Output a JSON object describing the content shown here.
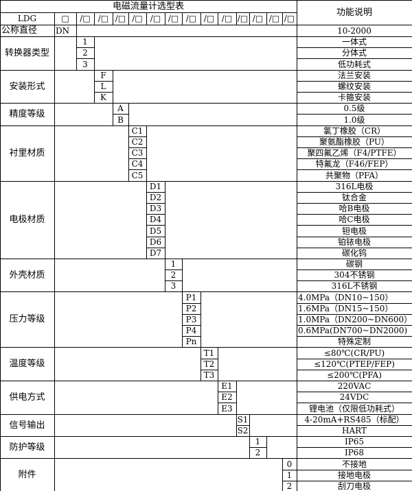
{
  "title": "电磁流量计选型表",
  "function_header": "功能说明",
  "model_row": {
    "prefix": "LDG",
    "first_box": "□",
    "boxes": [
      "/□",
      "/□",
      "/□",
      "/□",
      "/□",
      "/□",
      "/□",
      "/□",
      "/□",
      "/□",
      "/□",
      "/□",
      "/□"
    ]
  },
  "nominal": {
    "label": "公称直径",
    "code": "DN",
    "desc": "10-2000"
  },
  "sections": [
    {
      "label": "转换器类型",
      "items": [
        {
          "code": "1",
          "desc": "一体式"
        },
        {
          "code": "2",
          "desc": "分体式"
        },
        {
          "code": "3",
          "desc": "低功耗式"
        }
      ]
    },
    {
      "label": "安装形式",
      "items": [
        {
          "code": "F",
          "desc": "法兰安装"
        },
        {
          "code": "L",
          "desc": "螺纹安装"
        },
        {
          "code": "K",
          "desc": "卡箍安装"
        }
      ]
    },
    {
      "label": "精度等级",
      "items": [
        {
          "code": "A",
          "desc": "0.5级"
        },
        {
          "code": "B",
          "desc": "1.0级"
        }
      ]
    },
    {
      "label": "衬里材质",
      "items": [
        {
          "code": "C1",
          "desc": "氯丁橡胶（CR）"
        },
        {
          "code": "C2",
          "desc": "聚氨酯橡胶（PU）"
        },
        {
          "code": "C3",
          "desc": "聚四氟乙烯（F4/PTFE）"
        },
        {
          "code": "C4",
          "desc": "特氟龙（F46/FEP）"
        },
        {
          "code": "C5",
          "desc": "共聚物（PFA）"
        }
      ]
    },
    {
      "label": "电极材质",
      "items": [
        {
          "code": "D1",
          "desc": "316L电极"
        },
        {
          "code": "D2",
          "desc": "钛合金"
        },
        {
          "code": "D3",
          "desc": "哈B电极"
        },
        {
          "code": "D4",
          "desc": "哈C电极"
        },
        {
          "code": "D5",
          "desc": "钽电极"
        },
        {
          "code": "D6",
          "desc": "铂铱电极"
        },
        {
          "code": "D7",
          "desc": "碳化钨"
        }
      ]
    },
    {
      "label": "外壳材质",
      "items": [
        {
          "code": "1",
          "desc": "碳钢"
        },
        {
          "code": "2",
          "desc": "304不锈钢"
        },
        {
          "code": "3",
          "desc": "316L不锈钢"
        }
      ]
    },
    {
      "label": "压力等级",
      "items": [
        {
          "code": "P1",
          "desc": "4.0MPa（DN10~150）",
          "align": "left"
        },
        {
          "code": "P2",
          "desc": "1.6MPa（DN15~150）",
          "align": "left"
        },
        {
          "code": "P3",
          "desc": "1.0MPa（DN200~DN600）",
          "align": "left"
        },
        {
          "code": "P4",
          "desc": "0.6MPa(DN700~DN2000)",
          "align": "left"
        },
        {
          "code": "Pn",
          "desc": "特殊定制"
        }
      ]
    },
    {
      "label": "温度等级",
      "items": [
        {
          "code": "T1",
          "desc": "≤80℃(CR/PU)"
        },
        {
          "code": "T2",
          "desc": "≤120℃(PTEP/FEP)"
        },
        {
          "code": "T3",
          "desc": "≤200℃(PFA)"
        }
      ]
    },
    {
      "label": "供电方式",
      "items": [
        {
          "code": "E1",
          "desc": "220VAC"
        },
        {
          "code": "E2",
          "desc": "24VDC"
        },
        {
          "code": "E3",
          "desc": "锂电池（仅限低功耗式）"
        }
      ]
    },
    {
      "label": "信号输出",
      "items": [
        {
          "code": "S1",
          "desc": "4-20mA+RS485（标配）"
        },
        {
          "code": "S2",
          "desc": "HART"
        }
      ]
    },
    {
      "label": "防护等级",
      "items": [
        {
          "code": "1",
          "desc": "IP65"
        },
        {
          "code": "2",
          "desc": "IP68"
        }
      ]
    },
    {
      "label": "附件",
      "items": [
        {
          "code": "0",
          "desc": "不接地"
        },
        {
          "code": "1",
          "desc": "接地电极"
        },
        {
          "code": "2",
          "desc": "刮刀电极"
        }
      ]
    }
  ]
}
